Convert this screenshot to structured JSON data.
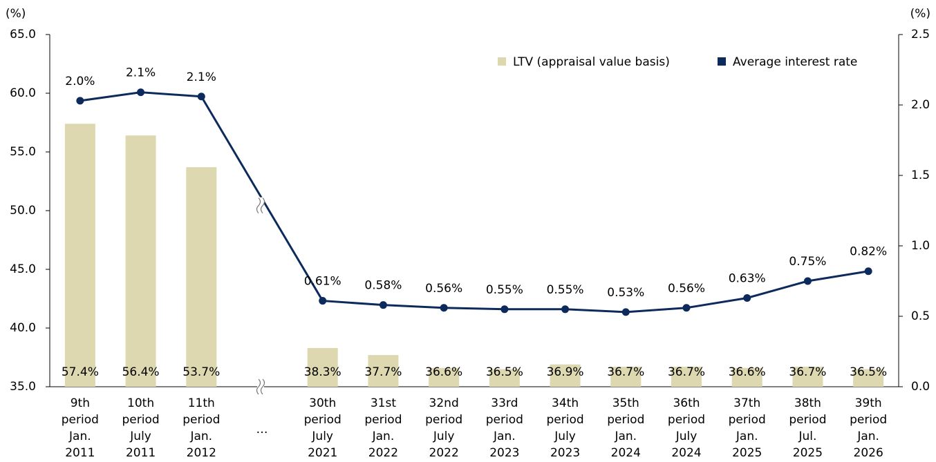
{
  "chart_data": {
    "type": "bar-line",
    "y_axis_label": "(%)",
    "y2_axis_label": "(%)",
    "categories": [
      [
        "9th",
        "period",
        "Jan.",
        "2011"
      ],
      [
        "10th",
        "period",
        "July",
        "2011"
      ],
      [
        "11th",
        "period",
        "Jan.",
        "2012"
      ],
      [
        "…"
      ],
      [
        "30th",
        "period",
        "July",
        "2021"
      ],
      [
        "31st",
        "period",
        "Jan.",
        "2022"
      ],
      [
        "32nd",
        "period",
        "July",
        "2022"
      ],
      [
        "33rd",
        "period",
        "Jan.",
        "2023"
      ],
      [
        "34th",
        "period",
        "July",
        "2023"
      ],
      [
        "35th",
        "period",
        "Jan.",
        "2024"
      ],
      [
        "36th",
        "period",
        "July",
        "2024"
      ],
      [
        "37th",
        "period",
        "Jan.",
        "2025"
      ],
      [
        "38th",
        "period",
        "Jul.",
        "2025"
      ],
      [
        "39th",
        "period",
        "Jan.",
        "2026"
      ]
    ],
    "series": [
      {
        "name": "LTV (appraisal value basis)",
        "type": "bar",
        "color": "#ddd8b0",
        "values": [
          57.4,
          56.4,
          53.7,
          null,
          38.3,
          37.7,
          36.6,
          36.5,
          36.9,
          36.7,
          36.7,
          36.6,
          36.7,
          36.5
        ],
        "value_labels": [
          "57.4%",
          "56.4%",
          "53.7%",
          null,
          "38.3%",
          "37.7%",
          "36.6%",
          "36.5%",
          "36.9%",
          "36.7%",
          "36.7%",
          "36.6%",
          "36.7%",
          "36.5%"
        ]
      },
      {
        "name": "Average interest rate",
        "type": "line",
        "axis": "y2",
        "color": "#0d2a5c",
        "values": [
          2.03,
          2.09,
          2.06,
          null,
          0.61,
          0.58,
          0.56,
          0.55,
          0.55,
          0.53,
          0.56,
          0.63,
          0.75,
          0.82
        ],
        "value_labels": [
          "2.0%",
          "2.1%",
          "2.1%",
          null,
          "0.61%",
          "0.58%",
          "0.56%",
          "0.55%",
          "0.55%",
          "0.53%",
          "0.56%",
          "0.63%",
          "0.75%",
          "0.82%"
        ]
      }
    ],
    "ylim": [
      35,
      65
    ],
    "yticks": [
      {
        "value": 35,
        "label": "35.0"
      },
      {
        "value": 40,
        "label": "40.0"
      },
      {
        "value": 45,
        "label": "45.0"
      },
      {
        "value": 50,
        "label": "50.0"
      },
      {
        "value": 55,
        "label": "55.0"
      },
      {
        "value": 60,
        "label": "60.0"
      },
      {
        "value": 65,
        "label": "65.0"
      }
    ],
    "y2lim": [
      0,
      2.5
    ],
    "y2ticks": [
      {
        "value": 0,
        "label": "0.0"
      },
      0.5,
      {
        "value": 1,
        "label": "1.0"
      },
      1.5,
      {
        "value": 2,
        "label": "2.0"
      },
      2.5
    ],
    "legend": "top-right"
  }
}
